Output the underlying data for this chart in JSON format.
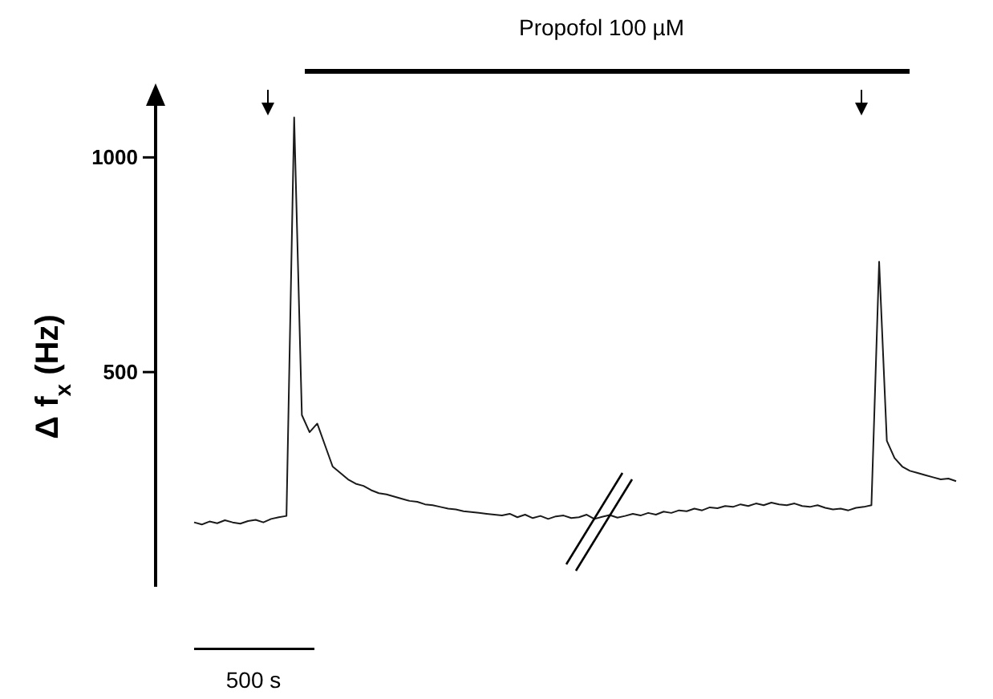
{
  "chart_data": {
    "type": "line",
    "ylabel": "Δ f$_{x}$ (Hz)",
    "color": "#1a1a1a",
    "ylim": [
      0,
      1150
    ],
    "yticks": [
      500,
      1000
    ],
    "tick_labels": "y",
    "grid": false,
    "marker": "none",
    "line_style": "solid",
    "annotations": [
      "Propofol 100 µM",
      "500 s"
    ],
    "categories": [
      null,
      null,
      null,
      null,
      null,
      null,
      null,
      null,
      null,
      null,
      null,
      null,
      null,
      null,
      null,
      null,
      null,
      null,
      null,
      null,
      null,
      null,
      null,
      null,
      null,
      null,
      null,
      null,
      null,
      null,
      null,
      null,
      null,
      null,
      null,
      null,
      null,
      null,
      null,
      null,
      null,
      null,
      null,
      null,
      null,
      null,
      null,
      null,
      null,
      null,
      null,
      null,
      null,
      null,
      null,
      null,
      null,
      null,
      null,
      null,
      null,
      null,
      null,
      null,
      null,
      null,
      null,
      null,
      null,
      null,
      null,
      null,
      null,
      null,
      null,
      null,
      null,
      null,
      null,
      null,
      null,
      null,
      null,
      null,
      null,
      null,
      null,
      null,
      null,
      null,
      null,
      null,
      null,
      null,
      null,
      null,
      null,
      null,
      null,
      null
    ],
    "values": [
      150,
      145,
      152,
      148,
      155,
      150,
      147,
      153,
      156,
      150,
      158,
      162,
      165,
      1093,
      400,
      360,
      380,
      330,
      280,
      265,
      250,
      240,
      235,
      225,
      218,
      215,
      210,
      205,
      200,
      198,
      192,
      190,
      186,
      182,
      180,
      176,
      174,
      172,
      170,
      168,
      166,
      170,
      162,
      168,
      160,
      165,
      158,
      164,
      166,
      160,
      162,
      168,
      158,
      163,
      167,
      161,
      165,
      170,
      166,
      172,
      168,
      175,
      172,
      178,
      176,
      182,
      178,
      185,
      183,
      188,
      186,
      192,
      188,
      194,
      190,
      196,
      192,
      190,
      194,
      188,
      186,
      190,
      184,
      180,
      182,
      178,
      184,
      186,
      190,
      757,
      340,
      300,
      280,
      270,
      265,
      260,
      255,
      250,
      252,
      246
    ]
  }
}
